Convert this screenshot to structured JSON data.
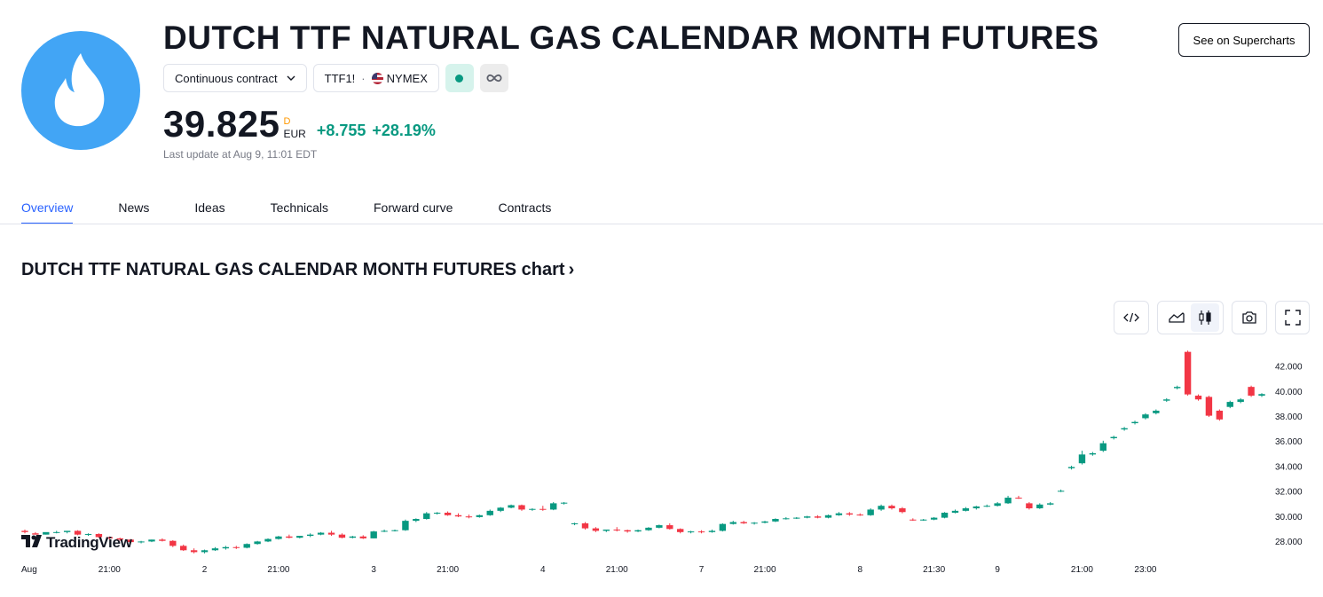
{
  "header": {
    "title": "DUTCH TTF NATURAL GAS CALENDAR MONTH FUTURES",
    "logo_icon": "flame-icon",
    "contract_select": "Continuous contract",
    "symbol": "TTF1!",
    "exchange": "NYMEX",
    "market_status_icon": "market-open-dot-icon",
    "extended_icon": "infinity-icon",
    "price": "39.825",
    "price_interval": "D",
    "currency": "EUR",
    "change": "+8.755",
    "change_percent": "+28.19%",
    "last_update": "Last update at Aug 9, 11:01 EDT",
    "supercharts_button": "See on Supercharts"
  },
  "tabs": [
    {
      "label": "Overview",
      "active": true
    },
    {
      "label": "News",
      "active": false
    },
    {
      "label": "Ideas",
      "active": false
    },
    {
      "label": "Technicals",
      "active": false
    },
    {
      "label": "Forward curve",
      "active": false
    },
    {
      "label": "Contracts",
      "active": false
    }
  ],
  "chart_section": {
    "title": "DUTCH TTF NATURAL GAS CALENDAR MONTH FUTURES chart",
    "arrow": "›",
    "tools": [
      "embed-icon",
      "area-chart-icon",
      "candles-icon",
      "camera-icon",
      "fullscreen-icon"
    ],
    "brand": "TradingView"
  },
  "colors": {
    "up": "#089981",
    "down": "#f23645",
    "accent": "#2962ff",
    "logo_bg": "#42a5f5"
  },
  "chart_data": {
    "type": "candlestick",
    "y_ticks": [
      "42.000",
      "40.000",
      "38.000",
      "36.000",
      "34.000",
      "32.000",
      "30.000",
      "28.000"
    ],
    "ylim": [
      27.3,
      43.6
    ],
    "x_ticks": [
      {
        "label": "Aug",
        "index": 0
      },
      {
        "label": "21:00",
        "index": 8
      },
      {
        "label": "2",
        "index": 17
      },
      {
        "label": "21:00",
        "index": 24
      },
      {
        "label": "3",
        "index": 33
      },
      {
        "label": "21:00",
        "index": 40
      },
      {
        "label": "4",
        "index": 49
      },
      {
        "label": "21:00",
        "index": 56
      },
      {
        "label": "7",
        "index": 64
      },
      {
        "label": "21:00",
        "index": 70
      },
      {
        "label": "8",
        "index": 79
      },
      {
        "label": "21:30",
        "index": 86
      },
      {
        "label": "9",
        "index": 92
      },
      {
        "label": "21:00",
        "index": 100
      },
      {
        "label": "23:00",
        "index": 106
      }
    ],
    "candles": [
      [
        28.9,
        29.0,
        28.8,
        28.7
      ],
      [
        28.7,
        28.8,
        28.6,
        28.6
      ],
      [
        28.6,
        28.7,
        28.8,
        28.6
      ],
      [
        28.8,
        28.9,
        28.8,
        28.7
      ],
      [
        28.8,
        28.9,
        28.9,
        28.7
      ],
      [
        28.9,
        28.95,
        28.6,
        28.55
      ],
      [
        28.6,
        28.7,
        28.65,
        28.5
      ],
      [
        28.65,
        28.7,
        28.4,
        28.35
      ],
      [
        28.4,
        28.45,
        28.3,
        28.2
      ],
      [
        28.3,
        28.35,
        28.2,
        28.1
      ],
      [
        28.2,
        28.25,
        28.0,
        27.9
      ],
      [
        28.0,
        28.1,
        28.05,
        27.9
      ],
      [
        28.05,
        28.2,
        28.2,
        28.0
      ],
      [
        28.2,
        28.3,
        28.1,
        28.05
      ],
      [
        28.1,
        28.15,
        27.7,
        27.6
      ],
      [
        27.7,
        27.8,
        27.35,
        27.3
      ],
      [
        27.35,
        27.5,
        27.2,
        27.1
      ],
      [
        27.2,
        27.4,
        27.35,
        27.1
      ],
      [
        27.35,
        27.6,
        27.5,
        27.3
      ],
      [
        27.5,
        27.7,
        27.6,
        27.4
      ],
      [
        27.6,
        27.7,
        27.55,
        27.45
      ],
      [
        27.55,
        27.9,
        27.85,
        27.5
      ],
      [
        27.85,
        28.1,
        28.05,
        27.8
      ],
      [
        28.05,
        28.3,
        28.25,
        28.0
      ],
      [
        28.25,
        28.5,
        28.45,
        28.2
      ],
      [
        28.45,
        28.6,
        28.35,
        28.3
      ],
      [
        28.35,
        28.5,
        28.5,
        28.3
      ],
      [
        28.5,
        28.7,
        28.6,
        28.4
      ],
      [
        28.6,
        28.8,
        28.75,
        28.55
      ],
      [
        28.75,
        28.9,
        28.6,
        28.5
      ],
      [
        28.6,
        28.7,
        28.35,
        28.3
      ],
      [
        28.35,
        28.5,
        28.45,
        28.3
      ],
      [
        28.45,
        28.55,
        28.3,
        28.25
      ],
      [
        28.3,
        28.9,
        28.85,
        28.3
      ],
      [
        28.85,
        29.0,
        28.9,
        28.8
      ],
      [
        28.9,
        29.0,
        28.95,
        28.85
      ],
      [
        28.95,
        29.8,
        29.7,
        28.9
      ],
      [
        29.7,
        29.9,
        29.85,
        29.6
      ],
      [
        29.85,
        30.4,
        30.3,
        29.8
      ],
      [
        30.3,
        30.4,
        30.35,
        30.2
      ],
      [
        30.35,
        30.45,
        30.15,
        30.1
      ],
      [
        30.15,
        30.3,
        30.05,
        30.0
      ],
      [
        30.05,
        30.2,
        30.0,
        29.9
      ],
      [
        30.0,
        30.2,
        30.15,
        29.95
      ],
      [
        30.15,
        30.6,
        30.5,
        30.1
      ],
      [
        30.5,
        30.8,
        30.75,
        30.4
      ],
      [
        30.75,
        31.0,
        30.95,
        30.7
      ],
      [
        30.95,
        31.0,
        30.6,
        30.5
      ],
      [
        30.6,
        30.7,
        30.65,
        30.5
      ],
      [
        30.65,
        30.9,
        30.6,
        30.5
      ],
      [
        30.6,
        31.2,
        31.1,
        30.55
      ],
      [
        31.1,
        31.2,
        31.15,
        31.0
      ],
      [
        29.45,
        29.55,
        29.5,
        29.35
      ],
      [
        29.5,
        29.6,
        29.1,
        29.0
      ],
      [
        29.1,
        29.2,
        28.9,
        28.8
      ],
      [
        28.9,
        29.0,
        29.0,
        28.8
      ],
      [
        29.0,
        29.2,
        28.95,
        28.85
      ],
      [
        28.95,
        29.0,
        28.85,
        28.75
      ],
      [
        28.85,
        29.0,
        28.95,
        28.8
      ],
      [
        28.95,
        29.2,
        29.15,
        28.9
      ],
      [
        29.15,
        29.4,
        29.35,
        29.1
      ],
      [
        29.35,
        29.5,
        29.05,
        29.0
      ],
      [
        29.05,
        29.1,
        28.8,
        28.7
      ],
      [
        28.8,
        28.9,
        28.85,
        28.7
      ],
      [
        28.85,
        28.95,
        28.8,
        28.7
      ],
      [
        28.8,
        29.0,
        28.9,
        28.75
      ],
      [
        28.9,
        29.5,
        29.45,
        28.85
      ],
      [
        29.45,
        29.7,
        29.6,
        29.4
      ],
      [
        29.6,
        29.7,
        29.5,
        29.45
      ],
      [
        29.5,
        29.6,
        29.55,
        29.4
      ],
      [
        29.55,
        29.7,
        29.65,
        29.5
      ],
      [
        29.65,
        29.9,
        29.85,
        29.6
      ],
      [
        29.85,
        30.0,
        29.9,
        29.8
      ],
      [
        29.9,
        30.0,
        29.95,
        29.85
      ],
      [
        29.95,
        30.1,
        30.05,
        29.9
      ],
      [
        30.05,
        30.15,
        29.95,
        29.9
      ],
      [
        29.95,
        30.2,
        30.15,
        29.9
      ],
      [
        30.15,
        30.4,
        30.3,
        30.1
      ],
      [
        30.3,
        30.4,
        30.2,
        30.1
      ],
      [
        30.2,
        30.3,
        30.15,
        30.1
      ],
      [
        30.15,
        30.7,
        30.6,
        30.1
      ],
      [
        30.6,
        31.0,
        30.9,
        30.5
      ],
      [
        30.9,
        31.0,
        30.7,
        30.6
      ],
      [
        30.7,
        30.8,
        30.4,
        30.3
      ],
      [
        29.8,
        29.9,
        29.75,
        29.7
      ],
      [
        29.75,
        29.85,
        29.8,
        29.7
      ],
      [
        29.8,
        30.0,
        29.95,
        29.75
      ],
      [
        29.95,
        30.4,
        30.35,
        29.9
      ],
      [
        30.35,
        30.6,
        30.5,
        30.3
      ],
      [
        30.5,
        30.8,
        30.7,
        30.45
      ],
      [
        30.7,
        30.9,
        30.85,
        30.6
      ],
      [
        30.85,
        31.0,
        30.9,
        30.8
      ],
      [
        30.9,
        31.2,
        31.1,
        30.85
      ],
      [
        31.1,
        31.7,
        31.55,
        31.05
      ],
      [
        31.55,
        31.7,
        31.5,
        31.45
      ],
      [
        31.1,
        31.2,
        30.7,
        30.6
      ],
      [
        30.7,
        31.1,
        31.0,
        30.65
      ],
      [
        31.0,
        31.2,
        31.1,
        30.95
      ],
      [
        32.1,
        32.2,
        32.1,
        32.0
      ],
      [
        33.9,
        34.1,
        34.0,
        33.8
      ],
      [
        34.3,
        35.3,
        35.0,
        34.2
      ],
      [
        35.0,
        35.2,
        35.1,
        34.9
      ],
      [
        35.3,
        36.1,
        35.9,
        35.2
      ],
      [
        36.3,
        36.5,
        36.4,
        36.2
      ],
      [
        37.0,
        37.2,
        37.1,
        36.9
      ],
      [
        37.5,
        37.7,
        37.6,
        37.4
      ],
      [
        37.9,
        38.3,
        38.2,
        37.8
      ],
      [
        38.3,
        38.6,
        38.5,
        38.2
      ],
      [
        39.3,
        39.5,
        39.4,
        39.2
      ],
      [
        40.3,
        40.5,
        40.4,
        40.2
      ],
      [
        43.2,
        43.3,
        39.8,
        39.7
      ],
      [
        39.7,
        39.8,
        39.4,
        39.3
      ],
      [
        39.6,
        39.7,
        38.1,
        38.0
      ],
      [
        38.5,
        38.6,
        37.8,
        37.7
      ],
      [
        38.8,
        39.3,
        39.2,
        38.7
      ],
      [
        39.2,
        39.5,
        39.4,
        39.1
      ],
      [
        40.4,
        40.5,
        39.7,
        39.6
      ],
      [
        39.7,
        39.9,
        39.825,
        39.6
      ]
    ]
  }
}
